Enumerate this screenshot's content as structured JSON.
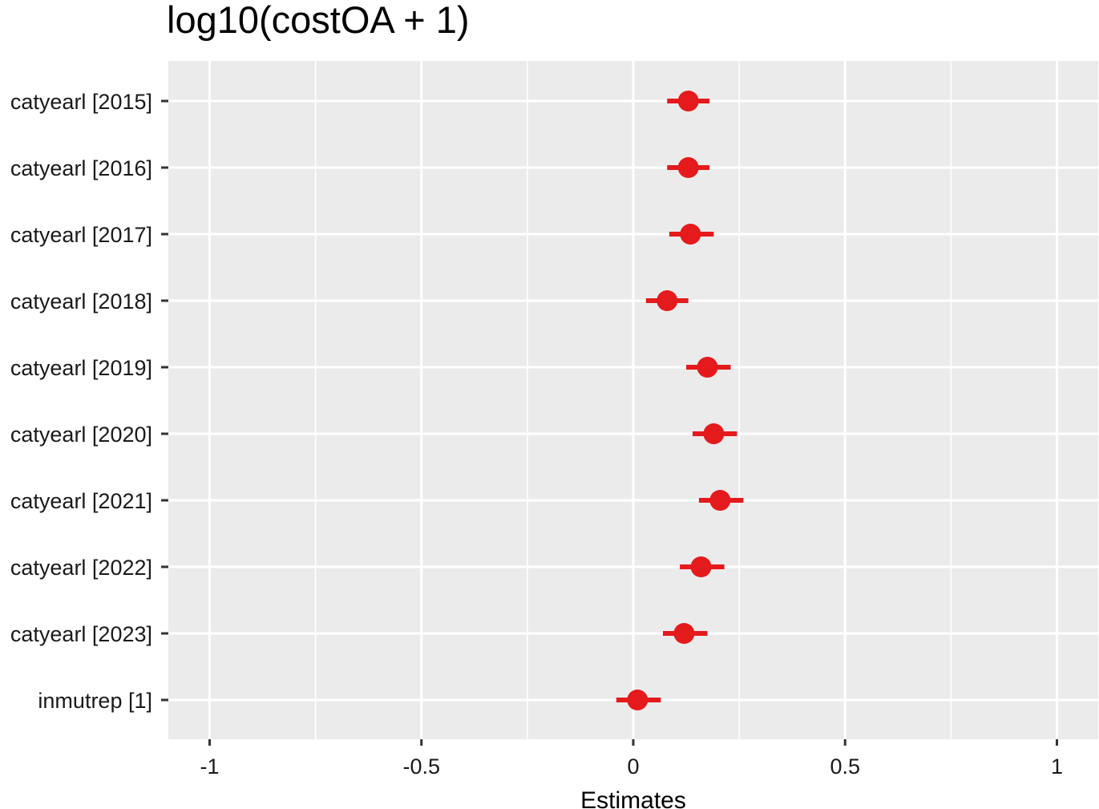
{
  "chart_data": {
    "type": "forest",
    "title": "log10(costOA + 1)",
    "xlabel": "Estimates",
    "ylabel": "",
    "xlim": [
      -1.1,
      1.1
    ],
    "x_ticks": [
      -1,
      -0.5,
      0,
      0.5,
      1
    ],
    "x_tick_labels": [
      "-1",
      "-0.5",
      "0",
      "0.5",
      "1"
    ],
    "grid": true,
    "legend": "none",
    "colors": {
      "panel_background": "#ebebeb",
      "grid": "#ffffff",
      "point": "#e41a1c",
      "tick": "#333333",
      "text": "#1a1a1a"
    },
    "terms": [
      {
        "label": "catyearl [2015]",
        "estimate": 0.13,
        "conf_low": 0.08,
        "conf_high": 0.18
      },
      {
        "label": "catyearl [2016]",
        "estimate": 0.13,
        "conf_low": 0.08,
        "conf_high": 0.18
      },
      {
        "label": "catyearl [2017]",
        "estimate": 0.135,
        "conf_low": 0.085,
        "conf_high": 0.19
      },
      {
        "label": "catyearl [2018]",
        "estimate": 0.08,
        "conf_low": 0.03,
        "conf_high": 0.13
      },
      {
        "label": "catyearl [2019]",
        "estimate": 0.175,
        "conf_low": 0.125,
        "conf_high": 0.23
      },
      {
        "label": "catyearl [2020]",
        "estimate": 0.19,
        "conf_low": 0.14,
        "conf_high": 0.245
      },
      {
        "label": "catyearl [2021]",
        "estimate": 0.205,
        "conf_low": 0.155,
        "conf_high": 0.26
      },
      {
        "label": "catyearl [2022]",
        "estimate": 0.16,
        "conf_low": 0.11,
        "conf_high": 0.215
      },
      {
        "label": "catyearl [2023]",
        "estimate": 0.12,
        "conf_low": 0.07,
        "conf_high": 0.175
      },
      {
        "label": "inmutrep [1]",
        "estimate": 0.01,
        "conf_low": -0.04,
        "conf_high": 0.065
      }
    ]
  }
}
